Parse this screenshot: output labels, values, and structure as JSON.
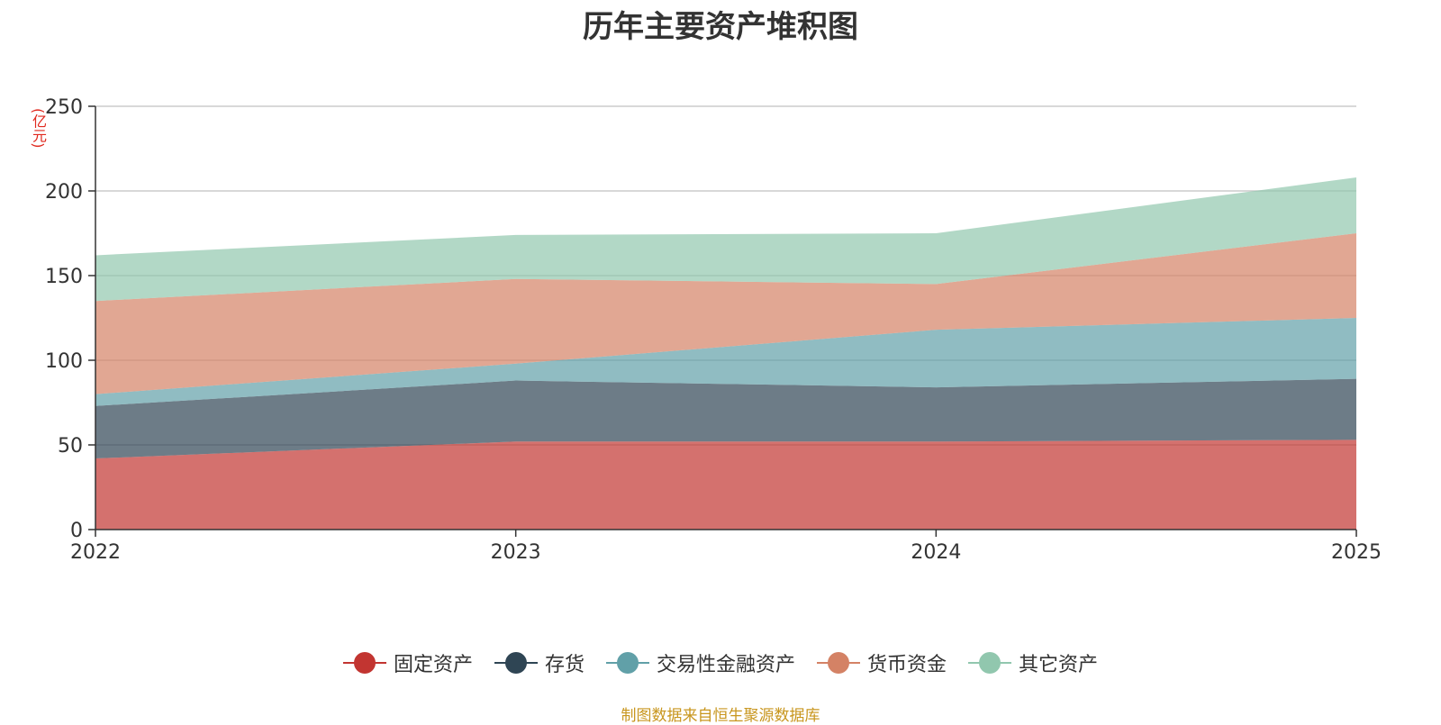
{
  "chart_data": {
    "type": "area",
    "stacked": true,
    "title": "历年主要资产堆积图",
    "unit": "(亿元)",
    "x": [
      "2022",
      "2023",
      "2024",
      "2025"
    ],
    "ylim": [
      0,
      250
    ],
    "yticks": [
      "0",
      "50",
      "100",
      "150",
      "200",
      "250"
    ],
    "grid": true,
    "legend_position": "bottom",
    "series": [
      {
        "name": "固定资产",
        "color": "#c23531",
        "values": [
          42,
          52,
          52,
          53
        ]
      },
      {
        "name": "存货",
        "color": "#2f4554",
        "values": [
          31,
          36,
          32,
          36
        ]
      },
      {
        "name": "交易性金融资产",
        "color": "#61a0a8",
        "values": [
          7,
          10,
          34,
          36
        ]
      },
      {
        "name": "货币资金",
        "color": "#d48265",
        "values": [
          55,
          50,
          27,
          50
        ]
      },
      {
        "name": "其它资产",
        "color": "#91c7ae",
        "values": [
          27,
          26,
          30,
          33
        ]
      }
    ]
  },
  "source_note": "制图数据来自恒生聚源数据库"
}
